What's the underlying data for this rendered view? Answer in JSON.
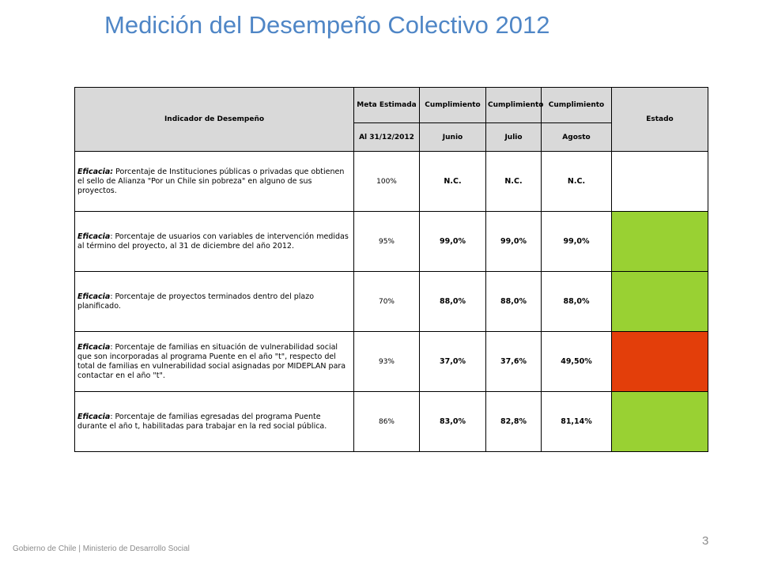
{
  "title": "Medición del Desempeño Colectivo 2012",
  "table": {
    "header": {
      "indicador": "Indicador de Desempeño",
      "meta": "Meta Estimada",
      "cumplimiento": [
        "Cumplimiento",
        "Cumplimiento",
        "Cumplimiento"
      ],
      "estado": "Estado",
      "fecha_meta": "Al 31/12/2012",
      "meses": [
        "Junio",
        "Julio",
        "Agosto"
      ]
    },
    "rows": [
      {
        "tipo": "Eficacia:",
        "texto": " Porcentaje de Instituciones públicas o privadas que obtienen el sello de Alianza \"Por un Chile sin pobreza\" en alguno de sus proyectos.",
        "meta": "100%",
        "valores": [
          "N.C.",
          "N.C.",
          "N.C."
        ],
        "estado_color": "#ffffff"
      },
      {
        "tipo": "Eficacia",
        "texto": ": Porcentaje de usuarios con variables de intervención medidas al término del proyecto, al 31 de diciembre del año 2012.",
        "meta": "95%",
        "valores": [
          "99,0%",
          "99,0%",
          "99,0%"
        ],
        "estado_color": "#99d133"
      },
      {
        "tipo": "Eficacia",
        "texto": ": Porcentaje de proyectos terminados dentro del plazo planificado.",
        "meta": "70%",
        "valores": [
          "88,0%",
          "88,0%",
          "88,0%"
        ],
        "estado_color": "#99d133"
      },
      {
        "tipo": "Eficacia",
        "texto": ": Porcentaje de familias en situación de vulnerabilidad social que son incorporadas al programa Puente en el año \"t\", respecto del total de familias en vulnerabilidad social asignadas por MIDEPLAN para contactar en el año \"t\".",
        "meta": "93%",
        "valores": [
          "37,0%",
          "37,6%",
          "49,50%"
        ],
        "estado_color": "#e33e0a"
      },
      {
        "tipo": "Eficacia",
        "texto": ": Porcentaje de familias egresadas del programa Puente durante el año t, habilitadas para trabajar en la red social pública.",
        "meta": "86%",
        "valores": [
          "83,0%",
          "82,8%",
          "81,14%"
        ],
        "estado_color": "#99d133"
      }
    ]
  },
  "footer": "Gobierno de Chile | Ministerio de Desarrollo Social",
  "page_number": "3"
}
